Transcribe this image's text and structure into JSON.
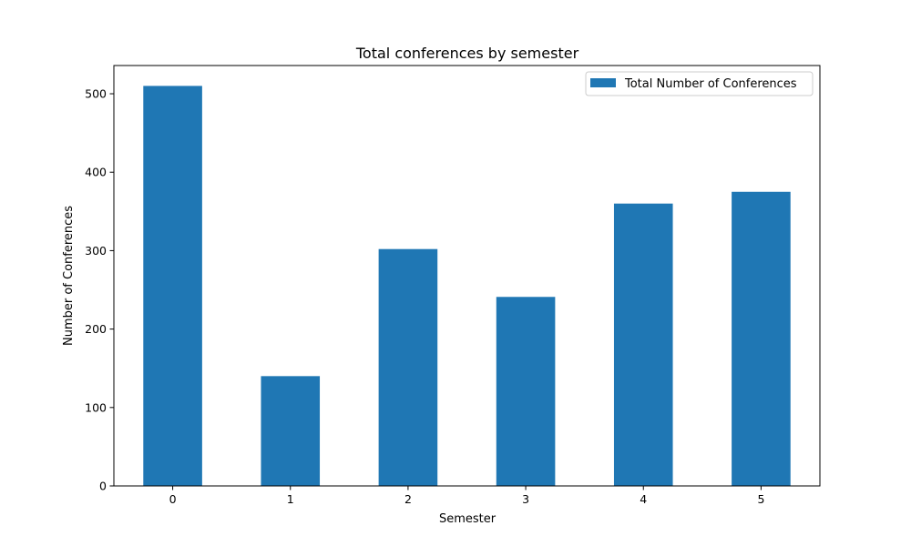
{
  "chart_data": {
    "type": "bar",
    "title": "Total conferences by semester",
    "xlabel": "Semester",
    "ylabel": "Number of Conferences",
    "categories": [
      "0",
      "1",
      "2",
      "3",
      "4",
      "5"
    ],
    "series": [
      {
        "name": "Total Number of Conferences",
        "values": [
          510,
          140,
          302,
          241,
          360,
          375
        ],
        "color": "#1f77b4"
      }
    ],
    "ylim": [
      0,
      536
    ],
    "yticks": [
      0,
      100,
      200,
      300,
      400,
      500
    ],
    "grid": false,
    "legend": "top-right"
  }
}
